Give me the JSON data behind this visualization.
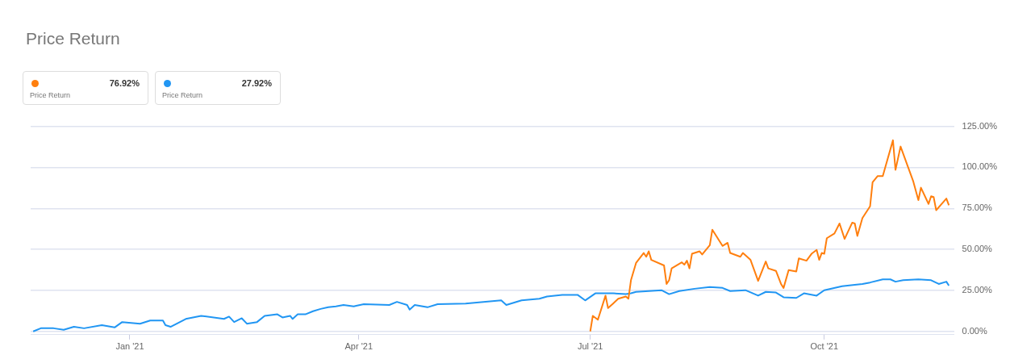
{
  "chart_data": {
    "type": "line",
    "title": "Price Return",
    "annotations": [
      "76.92%",
      "Price Return",
      "27.92%",
      "Price Return"
    ],
    "grid": "y",
    "marker": "none",
    "line_style": "solid",
    "xlim": [
      "2020-11-23",
      "2021-11-21"
    ],
    "xticks": [
      {
        "value": "2021-01-01",
        "label": "Jan '21"
      },
      {
        "value": "2021-04-01",
        "label": "Apr '21"
      },
      {
        "value": "2021-07-01",
        "label": "Jul '21"
      },
      {
        "value": "2021-10-01",
        "label": "Oct '21"
      }
    ],
    "ylim": [
      -2,
      125
    ],
    "yticks": [
      {
        "value": 0,
        "label": "0.00%"
      },
      {
        "value": 25,
        "label": "25.00%"
      },
      {
        "value": 50,
        "label": "50.00%"
      },
      {
        "value": 75,
        "label": "75.00%"
      },
      {
        "value": 100,
        "label": "100.00%"
      },
      {
        "value": 125,
        "label": "125.00%"
      }
    ],
    "series": [
      {
        "color": "#ff7f0e",
        "x": [
          "2021-07-01",
          "2021-07-02",
          "2021-07-04",
          "2021-07-07",
          "2021-07-08",
          "2021-07-10",
          "2021-07-12",
          "2021-07-15",
          "2021-07-16",
          "2021-07-17",
          "2021-07-19",
          "2021-07-22",
          "2021-07-23",
          "2021-07-24",
          "2021-07-25",
          "2021-07-30",
          "2021-07-31",
          "2021-08-01",
          "2021-08-02",
          "2021-08-06",
          "2021-08-07",
          "2021-08-08",
          "2021-08-09",
          "2021-08-10",
          "2021-08-13",
          "2021-08-14",
          "2021-08-17",
          "2021-08-18",
          "2021-08-22",
          "2021-08-24",
          "2021-08-25",
          "2021-08-29",
          "2021-08-30",
          "2021-09-02",
          "2021-09-05",
          "2021-09-08",
          "2021-09-09",
          "2021-09-12",
          "2021-09-14",
          "2021-09-15",
          "2021-09-17",
          "2021-09-20",
          "2021-09-21",
          "2021-09-24",
          "2021-09-26",
          "2021-09-28",
          "2021-09-29",
          "2021-09-30",
          "2021-10-01",
          "2021-10-02",
          "2021-10-05",
          "2021-10-07",
          "2021-10-09",
          "2021-10-12",
          "2021-10-13",
          "2021-10-14",
          "2021-10-16",
          "2021-10-19",
          "2021-10-20",
          "2021-10-22",
          "2021-10-24",
          "2021-10-28",
          "2021-10-29",
          "2021-10-31",
          "2021-11-03",
          "2021-11-05",
          "2021-11-07",
          "2021-11-08",
          "2021-11-11",
          "2021-11-12",
          "2021-11-13",
          "2021-11-14",
          "2021-11-18",
          "2021-11-19"
        ],
        "values": [
          0,
          9.5,
          7.1,
          21.8,
          14.2,
          17,
          19.9,
          21.3,
          19.9,
          31.2,
          41.7,
          47.8,
          45.5,
          48.8,
          43.6,
          40.2,
          28.9,
          31.2,
          38.4,
          42.1,
          40.7,
          43.1,
          38.4,
          47.3,
          48.8,
          46.9,
          52.6,
          62,
          52.1,
          54,
          47.8,
          45.5,
          47.8,
          43.6,
          30.8,
          42.6,
          38.4,
          36.9,
          28.9,
          26.5,
          37.4,
          36.5,
          44.5,
          43.1,
          47.3,
          49.7,
          43.6,
          47.8,
          47.3,
          56.8,
          59.7,
          65.8,
          56.4,
          66.3,
          65.8,
          58.2,
          69.1,
          76.2,
          90.9,
          94.7,
          94.7,
          116.5,
          98.5,
          112.7,
          99.9,
          91.4,
          80,
          87.6,
          77.7,
          82.4,
          81.9,
          73.9,
          81,
          76.9
        ]
      },
      {
        "color": "#2196f3",
        "x": [
          "2020-11-24",
          "2020-11-27",
          "2020-12-02",
          "2020-12-06",
          "2020-12-10",
          "2020-12-14",
          "2020-12-21",
          "2020-12-26",
          "2020-12-29",
          "2021-01-05",
          "2021-01-09",
          "2021-01-14",
          "2021-01-15",
          "2021-01-17",
          "2021-01-23",
          "2021-01-29",
          "2021-02-07",
          "2021-02-09",
          "2021-02-11",
          "2021-02-14",
          "2021-02-16",
          "2021-02-20",
          "2021-02-23",
          "2021-02-28",
          "2021-03-02",
          "2021-03-05",
          "2021-03-06",
          "2021-03-08",
          "2021-03-11",
          "2021-03-14",
          "2021-03-17",
          "2021-03-20",
          "2021-03-23",
          "2021-03-26",
          "2021-03-30",
          "2021-03-31",
          "2021-04-03",
          "2021-04-13",
          "2021-04-16",
          "2021-04-20",
          "2021-04-21",
          "2021-04-23",
          "2021-04-28",
          "2021-05-02",
          "2021-05-13",
          "2021-05-27",
          "2021-05-29",
          "2021-06-04",
          "2021-06-11",
          "2021-06-14",
          "2021-06-20",
          "2021-06-26",
          "2021-06-29",
          "2021-07-03",
          "2021-07-10",
          "2021-07-15",
          "2021-07-17",
          "2021-07-19",
          "2021-07-29",
          "2021-08-01",
          "2021-08-05",
          "2021-08-11",
          "2021-08-17",
          "2021-08-22",
          "2021-08-25",
          "2021-08-31",
          "2021-09-05",
          "2021-09-08",
          "2021-09-12",
          "2021-09-15",
          "2021-09-20",
          "2021-09-23",
          "2021-09-28",
          "2021-10-01",
          "2021-10-08",
          "2021-10-13",
          "2021-10-16",
          "2021-10-19",
          "2021-10-24",
          "2021-10-27",
          "2021-10-29",
          "2021-11-01",
          "2021-11-07",
          "2021-11-12",
          "2021-11-15",
          "2021-11-18",
          "2021-11-19"
        ],
        "values": [
          0,
          1.9,
          1.9,
          1,
          2.8,
          1.9,
          3.8,
          2.4,
          5.7,
          4.7,
          6.6,
          6.6,
          3.8,
          2.8,
          7.6,
          9.5,
          7.6,
          9,
          5.7,
          8,
          4.7,
          5.7,
          9.5,
          10.4,
          8.5,
          9.5,
          7.6,
          10.4,
          10.4,
          12.3,
          13.7,
          14.7,
          15.2,
          16.1,
          15.2,
          15.6,
          16.6,
          16.1,
          18,
          16.1,
          13.3,
          16.1,
          14.7,
          16.6,
          17,
          18.9,
          16.1,
          18.9,
          19.9,
          21.3,
          22.3,
          22.3,
          18.9,
          23.2,
          23.2,
          22.7,
          23.2,
          24.1,
          25.1,
          22.7,
          24.6,
          26,
          27,
          26.5,
          24.6,
          25.1,
          21.8,
          24.1,
          23.7,
          20.8,
          20.4,
          23.2,
          21.8,
          25.1,
          27.5,
          28.4,
          28.9,
          29.8,
          31.7,
          31.7,
          30.3,
          31.2,
          31.7,
          31.2,
          28.9,
          30.3,
          27.9
        ]
      }
    ]
  }
}
